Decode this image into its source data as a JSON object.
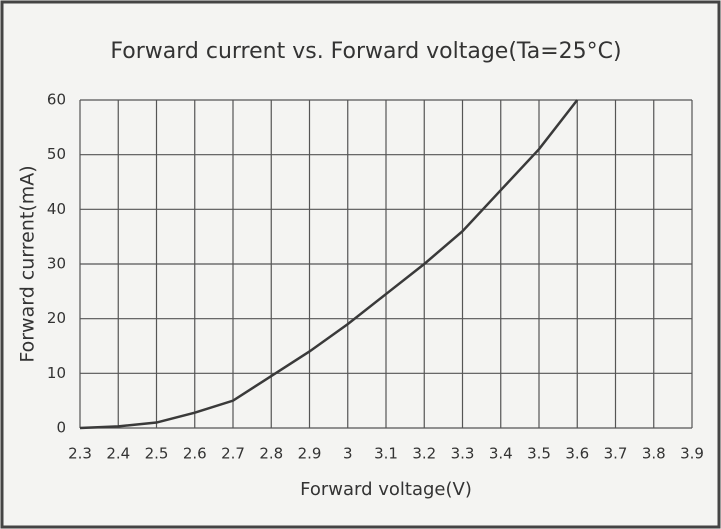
{
  "chart_data": {
    "type": "line",
    "title": "Forward current vs. Forward voltage(Ta=25°C)",
    "xlabel": "Forward voltage(V)",
    "ylabel": "Forward current(mA)",
    "x": [
      2.3,
      2.4,
      2.5,
      2.6,
      2.7,
      2.8,
      2.9,
      3.0,
      3.1,
      3.2,
      3.3,
      3.4,
      3.5,
      3.6
    ],
    "values": [
      0,
      0.3,
      1,
      2.8,
      5,
      9.5,
      14,
      19,
      24.5,
      30,
      36,
      43.5,
      51,
      60
    ],
    "color": "#3a3a3a",
    "xlim": [
      2.3,
      3.9
    ],
    "xticks": [
      2.3,
      2.4,
      2.5,
      2.6,
      2.7,
      2.8,
      2.9,
      3,
      3.1,
      3.2,
      3.3,
      3.4,
      3.5,
      3.6,
      3.7,
      3.8,
      3.9
    ],
    "ylim": [
      0,
      60
    ],
    "yticks": [
      0,
      10,
      20,
      30,
      40,
      50,
      60
    ],
    "grid": true
  }
}
